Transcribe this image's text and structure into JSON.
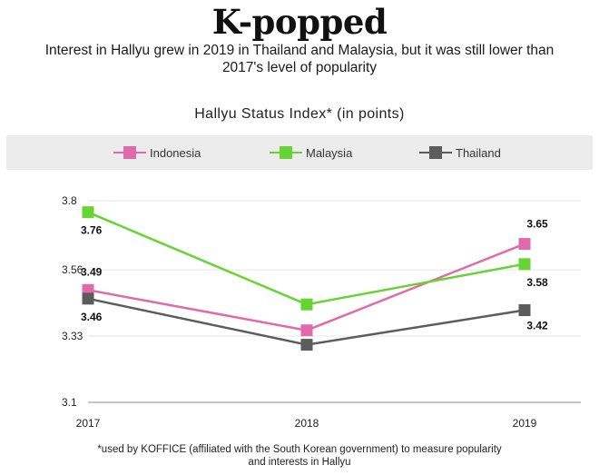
{
  "title": "K-popped",
  "subtitle": "Interest in Hallyu grew in 2019 in Thailand and Malaysia, but it was still lower than 2017's level of popularity",
  "footnote": "*used by KOFFICE (affiliated with the South Korean government) to measure popularity and interests in Hallyu",
  "colors": {
    "Indonesia": "#e06aaa",
    "Malaysia": "#66d432",
    "Thailand": "#5c5c5c"
  },
  "chart_data": {
    "type": "line",
    "title": "Hallyu Status Index* (in points)",
    "xlabel": "",
    "ylabel": "",
    "x": [
      "2017",
      "2018",
      "2019"
    ],
    "yticks": [
      "3.1",
      "3.33",
      "3.56",
      "3.8"
    ],
    "ylim": [
      3.1,
      3.8
    ],
    "grid": true,
    "legend_position": "top",
    "series": [
      {
        "name": "Indonesia",
        "values": [
          3.49,
          3.35,
          3.65
        ],
        "labels": [
          "3.49",
          "",
          "3.65"
        ]
      },
      {
        "name": "Malaysia",
        "values": [
          3.76,
          3.44,
          3.58
        ],
        "labels": [
          "3.76",
          "",
          "3.58"
        ]
      },
      {
        "name": "Thailand",
        "values": [
          3.46,
          3.3,
          3.42
        ],
        "labels": [
          "3.46",
          "",
          "3.42"
        ]
      }
    ]
  }
}
